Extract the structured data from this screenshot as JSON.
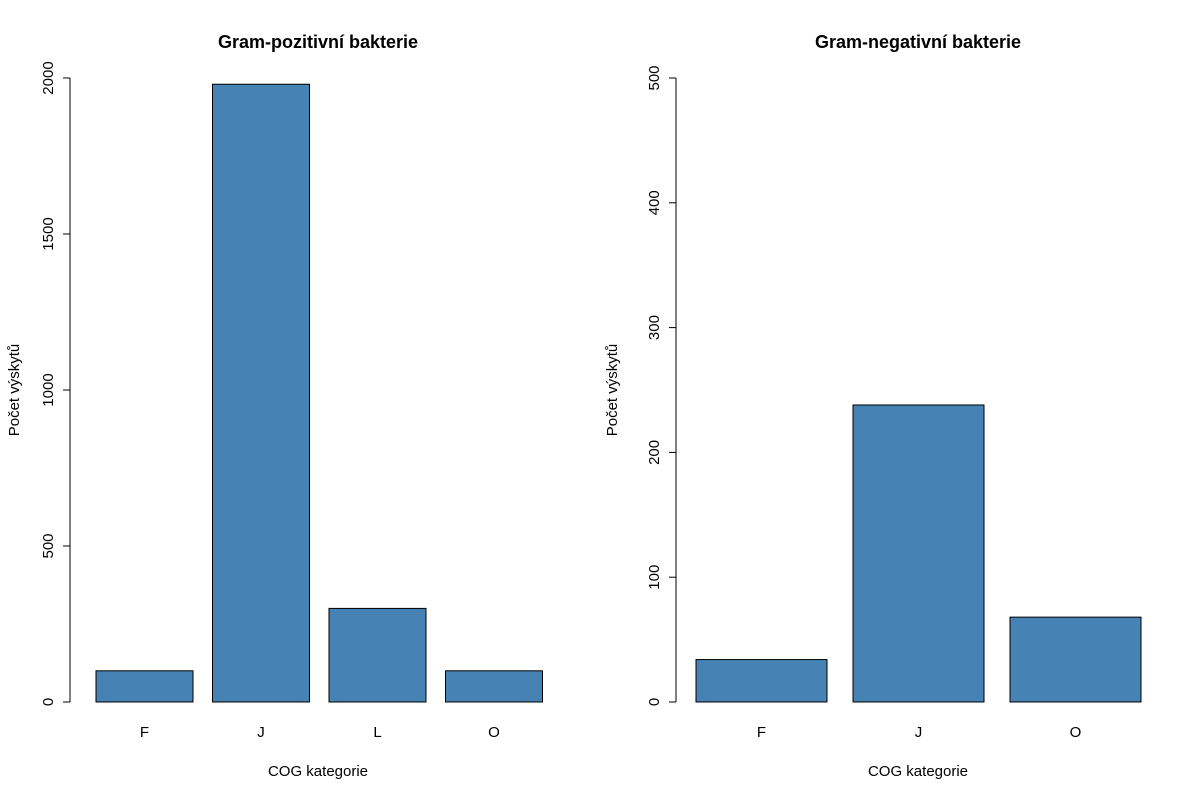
{
  "chart_data": [
    {
      "type": "bar",
      "title": "Gram-pozitivní bakterie",
      "xlabel": "COG kategorie",
      "ylabel": "Počet výskytů",
      "categories": [
        "F",
        "J",
        "L",
        "O"
      ],
      "values": [
        100,
        1980,
        300,
        100
      ],
      "ylim": [
        0,
        2000
      ],
      "yticks": [
        0,
        500,
        1000,
        1500,
        2000
      ],
      "bar_color": "#4682B4",
      "grid": false,
      "legend": "none"
    },
    {
      "type": "bar",
      "title": "Gram-negativní bakterie",
      "xlabel": "COG kategorie",
      "ylabel": "Počet výskytů",
      "categories": [
        "F",
        "J",
        "O"
      ],
      "values": [
        34,
        238,
        68
      ],
      "ylim": [
        0,
        500
      ],
      "yticks": [
        0,
        100,
        200,
        300,
        400,
        500
      ],
      "bar_color": "#4682B4",
      "grid": false,
      "legend": "none"
    }
  ]
}
